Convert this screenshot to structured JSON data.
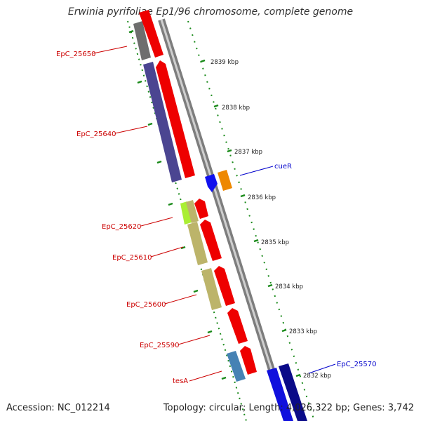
{
  "title": "Erwinia pyrifoliae Ep1/96 chromosome, complete genome",
  "footer": {
    "accession": "Accession: NC_012214",
    "summary": "Topology: circular; Length: 4,026,322 bp; Genes: 3,742"
  },
  "colors": {
    "backbone": "#8a8a8a",
    "tick": "#1a8a1a",
    "label_red": "#cc0000",
    "label_blue": "#0000cc"
  },
  "kbp_ticks": [
    "2839 kbp",
    "2838 kbp",
    "2837 kbp",
    "2836 kbp",
    "2835 kbp",
    "2834 kbp",
    "2833 kbp",
    "2832 kbp"
  ],
  "gene_labels": [
    {
      "text": "EpC_25650",
      "color": "#cc0000"
    },
    {
      "text": "EpC_25640",
      "color": "#cc0000"
    },
    {
      "text": "cueR",
      "color": "#0000cc"
    },
    {
      "text": "EpC_25620",
      "color": "#cc0000"
    },
    {
      "text": "EpC_25610",
      "color": "#cc0000"
    },
    {
      "text": "EpC_25600",
      "color": "#cc0000"
    },
    {
      "text": "EpC_25590",
      "color": "#cc0000"
    },
    {
      "text": "tesA",
      "color": "#cc0000"
    },
    {
      "text": "EpC_25570",
      "color": "#0000cc"
    }
  ],
  "features": [
    {
      "name": "gray-block-top",
      "color": "#6e6e6e"
    },
    {
      "name": "red-arrow-top",
      "color": "#ee0000"
    },
    {
      "name": "purple-block",
      "color": "#4b4591"
    },
    {
      "name": "red-arrow-long",
      "color": "#ee0000"
    },
    {
      "name": "cueR-arrow",
      "color": "#1111ee"
    },
    {
      "name": "orange-block",
      "color": "#ee8800"
    },
    {
      "name": "lime-block",
      "color": "#aaee33"
    },
    {
      "name": "khaki-block",
      "color": "#bcb46a"
    },
    {
      "name": "red-arrow",
      "color": "#ee0000"
    },
    {
      "name": "steelblue-block",
      "color": "#4682b4"
    },
    {
      "name": "blue-block",
      "color": "#1010dd"
    },
    {
      "name": "navy-block",
      "color": "#0a0a88"
    }
  ]
}
